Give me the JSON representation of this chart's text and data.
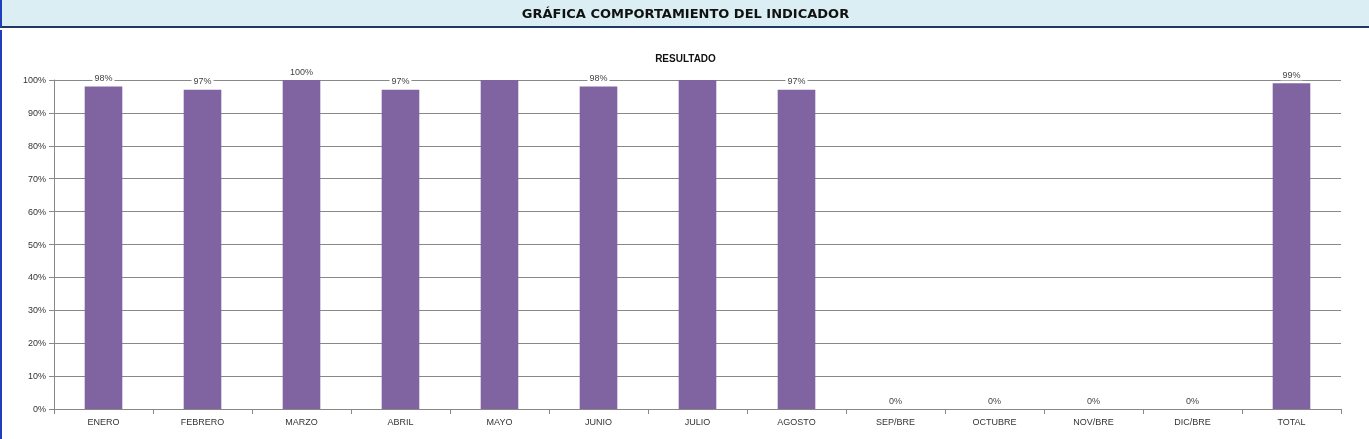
{
  "chart_data": {
    "type": "bar",
    "title": "GRÁFICA COMPORTAMIENTO DEL INDICADOR",
    "subtitle": "RESULTADO",
    "categories": [
      "ENERO",
      "FEBRERO",
      "MARZO",
      "ABRIL",
      "MAYO",
      "JUNIO",
      "JULIO",
      "AGOSTO",
      "SEP/BRE",
      "OCTUBRE",
      "NOV/BRE",
      "DIC/BRE",
      "TOTAL"
    ],
    "values": [
      98,
      97,
      100,
      97,
      100,
      98,
      100,
      97,
      0,
      0,
      0,
      0,
      99
    ],
    "value_labels": [
      "98%",
      "97%",
      "100%",
      "97%",
      null,
      "98%",
      null,
      "97%",
      "0%",
      "0%",
      "0%",
      "0%",
      "99%"
    ],
    "color": "#8064a2",
    "ylim": [
      0,
      100
    ],
    "yticks": [
      {
        "value": 0,
        "label": "0%"
      },
      {
        "value": 10,
        "label": "10%"
      },
      {
        "value": 20,
        "label": "20%"
      },
      {
        "value": 30,
        "label": "30%"
      },
      {
        "value": 40,
        "label": "40%"
      },
      {
        "value": 50,
        "label": "50%"
      },
      {
        "value": 60,
        "label": "60%"
      },
      {
        "value": 70,
        "label": "70%"
      },
      {
        "value": 80,
        "label": "80%"
      },
      {
        "value": 90,
        "label": "90%"
      },
      {
        "value": 100,
        "label": "100%"
      }
    ],
    "grid": "y"
  }
}
